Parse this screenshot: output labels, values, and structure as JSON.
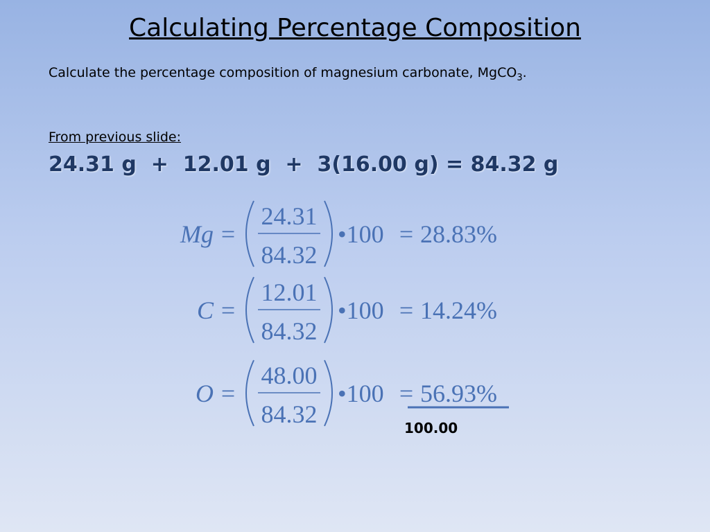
{
  "header": {
    "title": "Calculating Percentage Composition"
  },
  "prompt": {
    "text": "Calculate the percentage composition of magnesium carbonate, MgCO",
    "subscript": "3",
    "end": "."
  },
  "previous": {
    "label": "From previous slide:",
    "sum": "24.31 g  +  12.01 g  +  3(16.00 g) = 84.32 g"
  },
  "equations": [
    {
      "element": "Mg",
      "equals": "=",
      "numerator": "24.31",
      "denominator": "84.32",
      "multiplier": "•100",
      "equals2": "=",
      "result": "28.83%"
    },
    {
      "element": "C",
      "equals": "=",
      "numerator": "12.01",
      "denominator": "84.32",
      "multiplier": "•100",
      "equals2": "=",
      "result": "14.24%"
    },
    {
      "element": "O",
      "equals": "=",
      "numerator": "48.00",
      "denominator": "84.32",
      "multiplier": "•100",
      "equals2": "=",
      "result": "56.93%"
    }
  ],
  "total": "100.00"
}
